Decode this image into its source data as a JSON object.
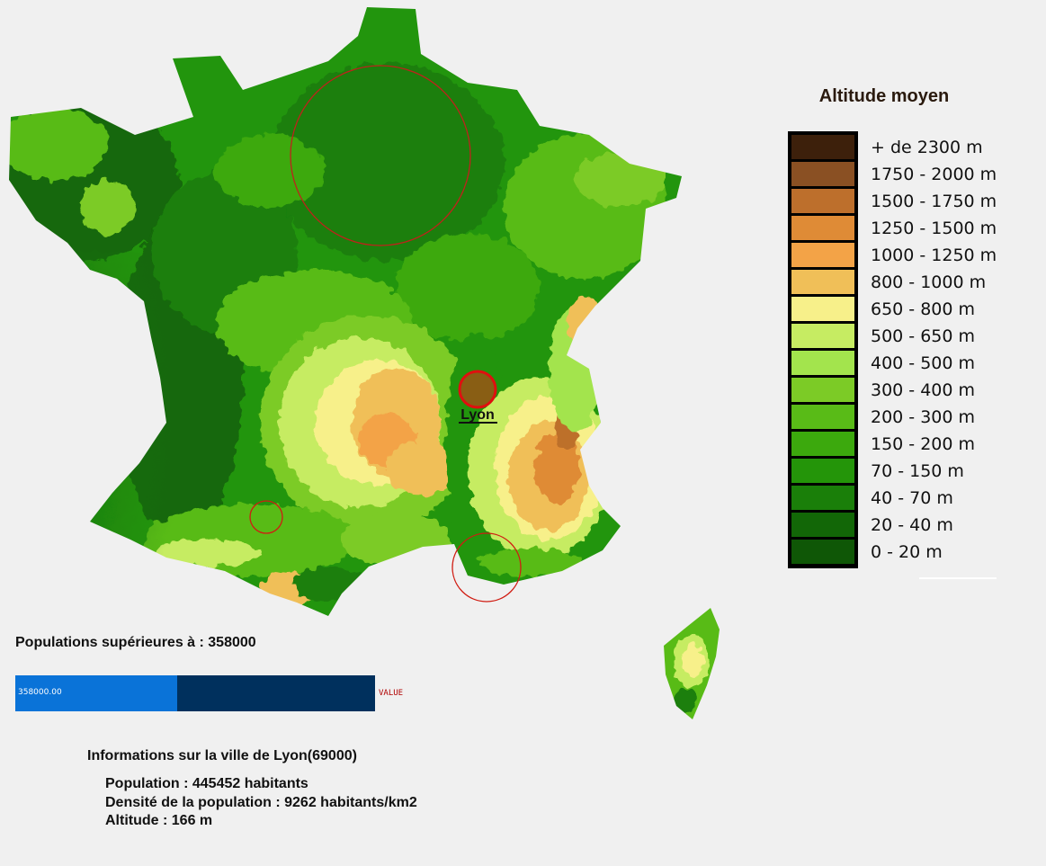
{
  "city_marker": {
    "label": "Lyon"
  },
  "legend": {
    "title": "Altitude moyen",
    "entries": [
      {
        "label": "+ de 2300 m",
        "color": "#3d200b"
      },
      {
        "label": "1750 - 2000 m",
        "color": "#8a5023"
      },
      {
        "label": "1500 - 1750 m",
        "color": "#bd6f2c"
      },
      {
        "label": "1250 - 1500 m",
        "color": "#df8b36"
      },
      {
        "label": "1000 - 1250 m",
        "color": "#f3a347"
      },
      {
        "label": "800 - 1000 m",
        "color": "#f0bf58"
      },
      {
        "label": "650 - 800 m",
        "color": "#f7f08a"
      },
      {
        "label": "500 - 650 m",
        "color": "#c6ec62"
      },
      {
        "label": "400 - 500 m",
        "color": "#a3e44d"
      },
      {
        "label": "300 - 400 m",
        "color": "#7ccb26"
      },
      {
        "label": "200 - 300 m",
        "color": "#59bb17"
      },
      {
        "label": "150 - 200 m",
        "color": "#3ca90d"
      },
      {
        "label": "70 - 150 m",
        "color": "#249509"
      },
      {
        "label": "40 - 70 m",
        "color": "#1a7f09"
      },
      {
        "label": "20 - 40 m",
        "color": "#126707"
      },
      {
        "label": "0 - 20 m",
        "color": "#0f5706"
      }
    ]
  },
  "population_filter": {
    "label": "Populations supérieures à  : 358000",
    "slider_text": "358000.00",
    "value_tag": "VALUE",
    "fill_fraction": 0.45
  },
  "city_info": {
    "title": "Informations sur la ville de Lyon(69000)",
    "population": "Population : 445452 habitants",
    "density": "Densité de  la population : 9262 habitants/km2",
    "altitude": "Altitude : 166 m"
  }
}
